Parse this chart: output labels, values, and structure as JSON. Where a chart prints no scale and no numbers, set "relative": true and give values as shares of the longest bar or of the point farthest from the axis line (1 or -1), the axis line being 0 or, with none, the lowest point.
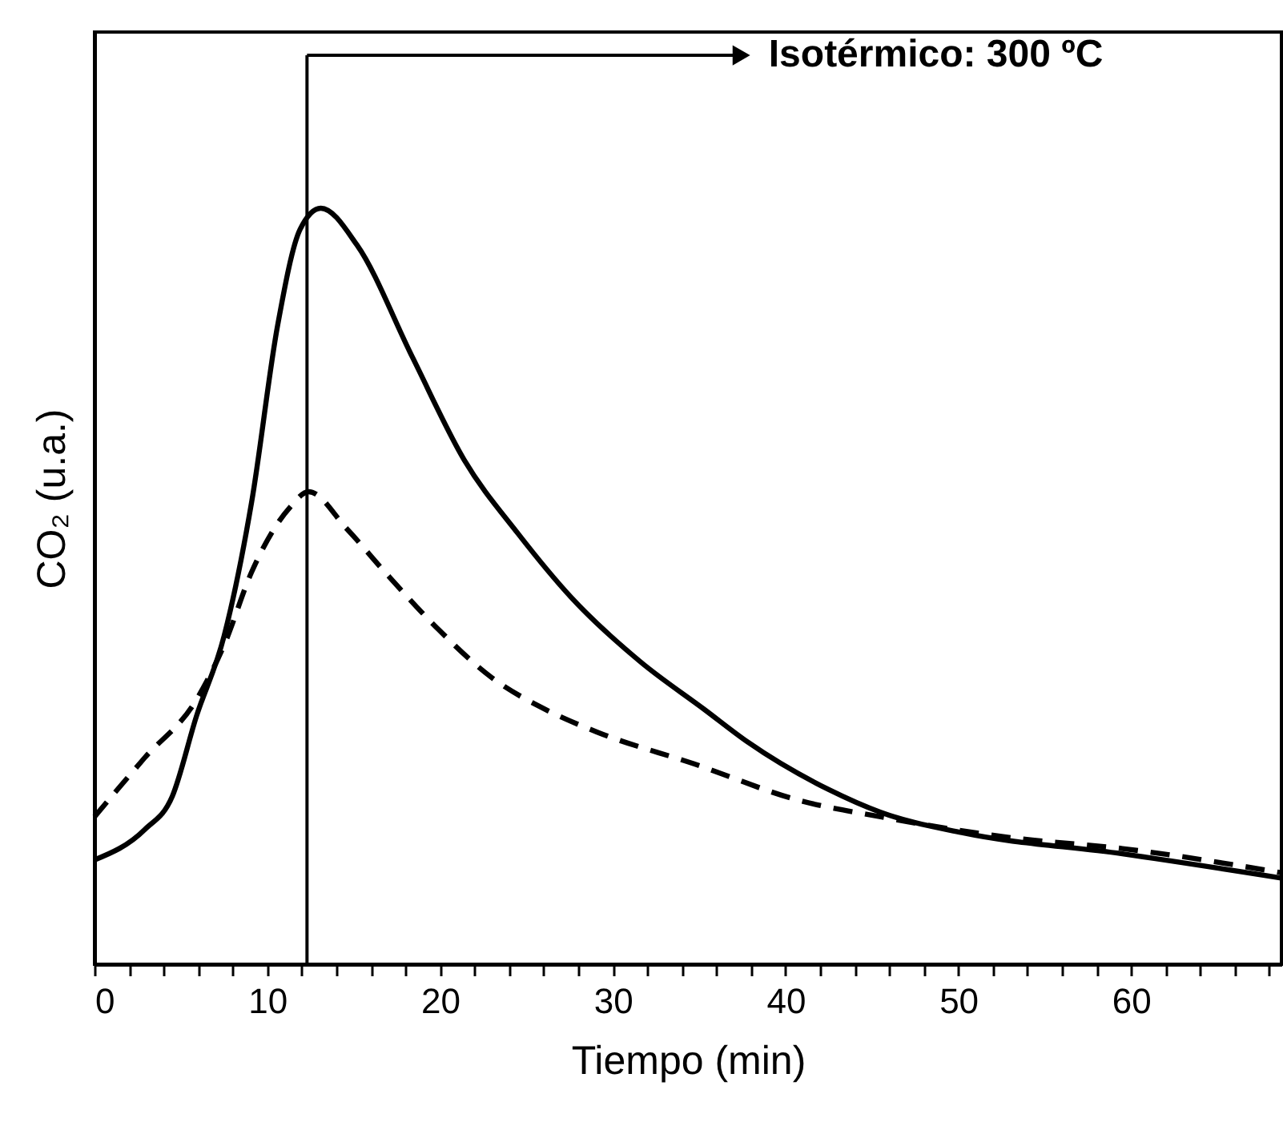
{
  "chart_data": {
    "type": "line",
    "relative": true,
    "xlabel": "Tiempo (min)",
    "ylabel": "CO₂ (u.a.)",
    "xlim": [
      0,
      68.7
    ],
    "xticks": [
      0,
      {
        "value": 2,
        "label": null
      },
      {
        "value": 4,
        "label": null
      },
      {
        "value": 6,
        "label": null
      },
      {
        "value": 8,
        "label": null
      },
      10,
      {
        "value": 12,
        "label": null
      },
      {
        "value": 14,
        "label": null
      },
      {
        "value": 16,
        "label": null
      },
      {
        "value": 18,
        "label": null
      },
      20,
      {
        "value": 22,
        "label": null
      },
      {
        "value": 24,
        "label": null
      },
      {
        "value": 26,
        "label": null
      },
      {
        "value": 28,
        "label": null
      },
      30,
      {
        "value": 32,
        "label": null
      },
      {
        "value": 34,
        "label": null
      },
      {
        "value": 36,
        "label": null
      },
      {
        "value": 38,
        "label": null
      },
      40,
      {
        "value": 42,
        "label": null
      },
      {
        "value": 44,
        "label": null
      },
      {
        "value": 46,
        "label": null
      },
      {
        "value": 48,
        "label": null
      },
      50,
      {
        "value": 52,
        "label": null
      },
      {
        "value": 54,
        "label": null
      },
      {
        "value": 56,
        "label": null
      },
      {
        "value": 58,
        "label": null
      },
      60,
      {
        "value": 62,
        "label": null
      },
      {
        "value": 64,
        "label": null
      },
      {
        "value": 66,
        "label": null
      },
      {
        "value": 68,
        "label": null
      }
    ],
    "grid": false,
    "marker": "none",
    "series": [
      {
        "color": "#000000",
        "line_style": "solid",
        "x": [
          0,
          2.9,
          4.5,
          5.9,
          7.5,
          9.1,
          10.6,
          11.9,
          13.1,
          15.2,
          18.4,
          21.4,
          24.5,
          27.6,
          31.6,
          35.3,
          37.8,
          42.5,
          45.5,
          50.2,
          59.5,
          68.7
        ],
        "values": [
          0.138,
          0.178,
          0.222,
          0.328,
          0.434,
          0.612,
          0.845,
          0.972,
          1.0,
          0.951,
          0.803,
          0.667,
          0.57,
          0.485,
          0.4,
          0.337,
          0.294,
          0.231,
          0.201,
          0.174,
          0.146,
          0.114
        ]
      },
      {
        "color": "#000000",
        "line_style": "dashed",
        "x": [
          0,
          2.9,
          5.9,
          7.5,
          9.1,
          11.3,
          12.4,
          14.6,
          16.8,
          19.9,
          23.0,
          26.1,
          29.1,
          34.7,
          40.9,
          45.5,
          53.2,
          59.5,
          68.7
        ],
        "values": [
          0.195,
          0.273,
          0.35,
          0.422,
          0.519,
          0.604,
          0.625,
          0.576,
          0.519,
          0.443,
          0.379,
          0.337,
          0.307,
          0.265,
          0.216,
          0.195,
          0.167,
          0.153,
          0.121
        ]
      }
    ],
    "ref_lines": [
      {
        "axis": "x",
        "value": 12.3,
        "color": "#000000",
        "line_style": "solid"
      }
    ],
    "annotations": [
      "Isotérmico: 300 ºC"
    ]
  }
}
